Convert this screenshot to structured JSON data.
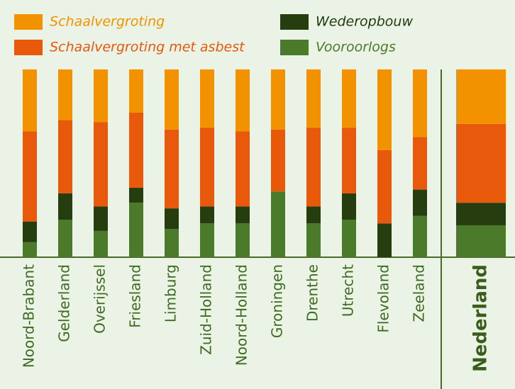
{
  "chart_data": {
    "type": "stacked_bar",
    "categories": [
      "Noord-Brabant",
      "Gelderland",
      "Overijssel",
      "Friesland",
      "Limburg",
      "Zuid-Holland",
      "Noord-Holland",
      "Groningen",
      "Drenthe",
      "Utrecht",
      "Flevoland",
      "Zeeland",
      "Nederland"
    ],
    "series": [
      {
        "name": "Vooroorlogs",
        "color": "#4a7a2a",
        "values": [
          8,
          20,
          14,
          29,
          15,
          18,
          18,
          35,
          18,
          20,
          0,
          22,
          17
        ]
      },
      {
        "name": "Wederopbouw",
        "color": "#253d0f",
        "values": [
          11,
          14,
          13,
          8,
          11,
          9,
          9,
          0,
          9,
          14,
          18,
          14,
          12
        ]
      },
      {
        "name": "Schaalvergroting met asbest",
        "color": "#e8590c",
        "values": [
          48,
          39,
          45,
          40,
          42,
          42,
          40,
          33,
          42,
          35,
          39,
          28,
          42
        ]
      },
      {
        "name": "Schaalvergroting",
        "color": "#f39200",
        "values": [
          33,
          27,
          28,
          23,
          32,
          31,
          33,
          32,
          31,
          31,
          43,
          36,
          29
        ]
      }
    ],
    "ylim": [
      0,
      100
    ]
  }
}
